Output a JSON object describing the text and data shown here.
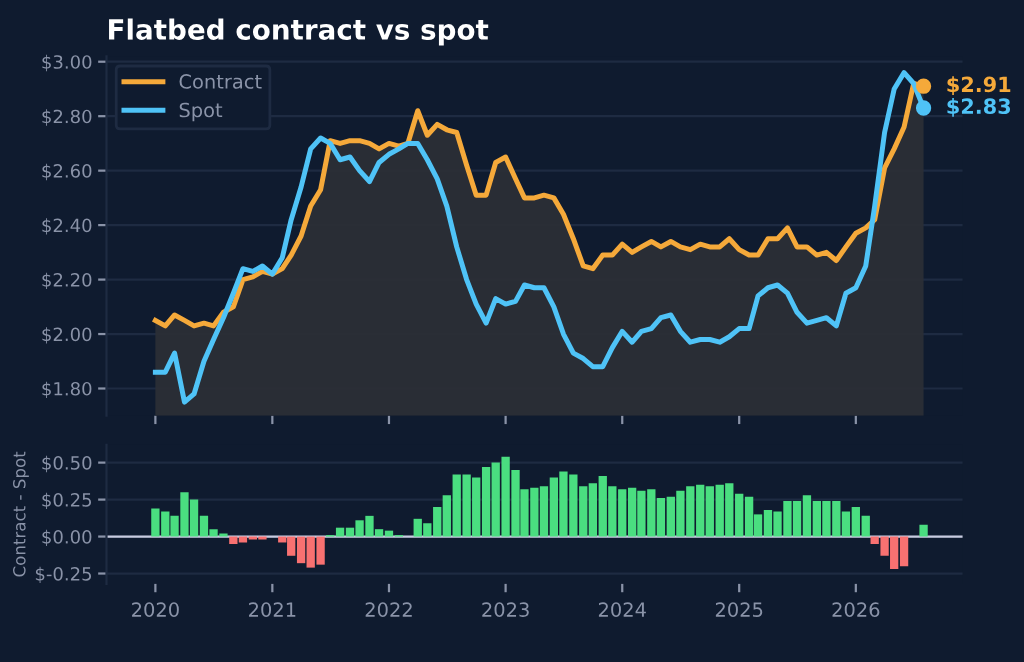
{
  "chart_data": [
    {
      "type": "line",
      "title": "Flatbed contract vs spot",
      "x": [
        "2020-01",
        "2020-02",
        "2020-03",
        "2020-04",
        "2020-05",
        "2020-06",
        "2020-07",
        "2020-08",
        "2020-09",
        "2020-10",
        "2020-11",
        "2020-12",
        "2021-01",
        "2021-02",
        "2021-03",
        "2021-04",
        "2021-05",
        "2021-06",
        "2021-07",
        "2021-08",
        "2021-09",
        "2021-10",
        "2021-11",
        "2021-12",
        "2022-01",
        "2022-02",
        "2022-03",
        "2022-04",
        "2022-05",
        "2022-06",
        "2022-07",
        "2022-08",
        "2022-09",
        "2022-10",
        "2022-11",
        "2022-12",
        "2023-01",
        "2023-02",
        "2023-03",
        "2023-04",
        "2023-05",
        "2023-06",
        "2023-07",
        "2023-08",
        "2023-09",
        "2023-10",
        "2023-11",
        "2023-12",
        "2024-01",
        "2024-02",
        "2024-03",
        "2024-04",
        "2024-05",
        "2024-06",
        "2024-07",
        "2024-08",
        "2024-09",
        "2024-10",
        "2024-11",
        "2024-12",
        "2025-01",
        "2025-02",
        "2025-03",
        "2025-04",
        "2025-05",
        "2025-06",
        "2025-07",
        "2025-08",
        "2025-09",
        "2025-10",
        "2025-11",
        "2025-12",
        "2026-01",
        "2026-02",
        "2026-03",
        "2026-04",
        "2026-05",
        "2026-06",
        "2026-07",
        "2026-08"
      ],
      "series": [
        {
          "name": "Contract",
          "type": "area",
          "color": "#f5a93a",
          "values": [
            2.05,
            2.03,
            2.07,
            2.05,
            2.03,
            2.04,
            2.03,
            2.08,
            2.1,
            2.2,
            2.21,
            2.23,
            2.22,
            2.24,
            2.29,
            2.36,
            2.47,
            2.53,
            2.71,
            2.7,
            2.71,
            2.71,
            2.7,
            2.68,
            2.7,
            2.69,
            2.7,
            2.82,
            2.73,
            2.77,
            2.75,
            2.74,
            2.62,
            2.51,
            2.51,
            2.63,
            2.65,
            2.57,
            2.5,
            2.5,
            2.51,
            2.5,
            2.44,
            2.35,
            2.25,
            2.24,
            2.29,
            2.29,
            2.33,
            2.3,
            2.32,
            2.34,
            2.32,
            2.34,
            2.32,
            2.31,
            2.33,
            2.32,
            2.32,
            2.35,
            2.31,
            2.29,
            2.29,
            2.35,
            2.35,
            2.39,
            2.32,
            2.32,
            2.29,
            2.3,
            2.27,
            2.32,
            2.37,
            2.39,
            2.42,
            2.61,
            2.68,
            2.76,
            2.92,
            2.91
          ]
        },
        {
          "name": "Spot",
          "color": "#4fc3f7",
          "values": [
            1.86,
            1.86,
            1.93,
            1.75,
            1.78,
            1.9,
            1.98,
            2.06,
            2.15,
            2.24,
            2.23,
            2.25,
            2.22,
            2.28,
            2.42,
            2.54,
            2.68,
            2.72,
            2.7,
            2.64,
            2.65,
            2.6,
            2.56,
            2.63,
            2.66,
            2.68,
            2.7,
            2.7,
            2.64,
            2.57,
            2.47,
            2.32,
            2.2,
            2.11,
            2.04,
            2.13,
            2.11,
            2.12,
            2.18,
            2.17,
            2.17,
            2.1,
            2.0,
            1.93,
            1.91,
            1.88,
            1.88,
            1.95,
            2.01,
            1.97,
            2.01,
            2.02,
            2.06,
            2.07,
            2.01,
            1.97,
            1.98,
            1.98,
            1.97,
            1.99,
            2.02,
            2.02,
            2.14,
            2.17,
            2.18,
            2.15,
            2.08,
            2.04,
            2.05,
            2.06,
            2.03,
            2.15,
            2.17,
            2.25,
            2.47,
            2.74,
            2.9,
            2.96,
            2.92,
            2.83
          ]
        }
      ],
      "annotations": [
        {
          "text": "$2.91",
          "x": "2026-08",
          "y": 2.91
        },
        {
          "text": "$2.83",
          "x": "2026-08",
          "y": 2.83
        }
      ],
      "xlim": [
        "2019-08",
        "2026-12"
      ],
      "xticks": [
        "2020",
        "2021",
        "2022",
        "2023",
        "2024",
        "2025",
        "2026"
      ],
      "ylim": [
        1.7,
        3.02
      ],
      "yticks": [
        {
          "value": 1.8,
          "label": "$1.80"
        },
        {
          "value": 2.0,
          "label": "$2.00"
        },
        {
          "value": 2.2,
          "label": "$2.20"
        },
        {
          "value": 2.4,
          "label": "$2.40"
        },
        {
          "value": 2.6,
          "label": "$2.60"
        },
        {
          "value": 2.8,
          "label": "$2.80"
        },
        {
          "value": 3.0,
          "label": "$3.00"
        }
      ],
      "tick_labels": "y",
      "grid": "y",
      "legend": "top left",
      "line_style": "solid"
    },
    {
      "type": "bar",
      "ylabel": "Contract - Spot",
      "x": [
        "2020-01",
        "2020-02",
        "2020-03",
        "2020-04",
        "2020-05",
        "2020-06",
        "2020-07",
        "2020-08",
        "2020-09",
        "2020-10",
        "2020-11",
        "2020-12",
        "2021-01",
        "2021-02",
        "2021-03",
        "2021-04",
        "2021-05",
        "2021-06",
        "2021-07",
        "2021-08",
        "2021-09",
        "2021-10",
        "2021-11",
        "2021-12",
        "2022-01",
        "2022-02",
        "2022-03",
        "2022-04",
        "2022-05",
        "2022-06",
        "2022-07",
        "2022-08",
        "2022-09",
        "2022-10",
        "2022-11",
        "2022-12",
        "2023-01",
        "2023-02",
        "2023-03",
        "2023-04",
        "2023-05",
        "2023-06",
        "2023-07",
        "2023-08",
        "2023-09",
        "2023-10",
        "2023-11",
        "2023-12",
        "2024-01",
        "2024-02",
        "2024-03",
        "2024-04",
        "2024-05",
        "2024-06",
        "2024-07",
        "2024-08",
        "2024-09",
        "2024-10",
        "2024-11",
        "2024-12",
        "2025-01",
        "2025-02",
        "2025-03",
        "2025-04",
        "2025-05",
        "2025-06",
        "2025-07",
        "2025-08",
        "2025-09",
        "2025-10",
        "2025-11",
        "2025-12",
        "2026-01",
        "2026-02",
        "2026-03",
        "2026-04",
        "2026-05",
        "2026-06",
        "2026-07",
        "2026-08"
      ],
      "values": [
        0.19,
        0.17,
        0.14,
        0.3,
        0.25,
        0.14,
        0.05,
        0.02,
        -0.05,
        -0.04,
        -0.02,
        -0.02,
        0.0,
        -0.04,
        -0.13,
        -0.18,
        -0.21,
        -0.19,
        0.01,
        0.06,
        0.06,
        0.11,
        0.14,
        0.05,
        0.04,
        0.01,
        0.0,
        0.12,
        0.09,
        0.2,
        0.28,
        0.42,
        0.42,
        0.4,
        0.47,
        0.5,
        0.54,
        0.45,
        0.32,
        0.33,
        0.34,
        0.4,
        0.44,
        0.42,
        0.34,
        0.36,
        0.41,
        0.34,
        0.32,
        0.33,
        0.31,
        0.32,
        0.26,
        0.27,
        0.31,
        0.34,
        0.35,
        0.34,
        0.35,
        0.36,
        0.29,
        0.27,
        0.15,
        0.18,
        0.17,
        0.24,
        0.24,
        0.28,
        0.24,
        0.24,
        0.24,
        0.17,
        0.2,
        0.14,
        -0.05,
        -0.13,
        -0.22,
        -0.2,
        0.0,
        0.08
      ],
      "colors": [
        "#4ade80",
        "#4ade80",
        "#4ade80",
        "#4ade80",
        "#4ade80",
        "#4ade80",
        "#4ade80",
        "#4ade80",
        "#f87171",
        "#f87171",
        "#f87171",
        "#f87171",
        "#4ade80",
        "#f87171",
        "#f87171",
        "#f87171",
        "#f87171",
        "#f87171",
        "#4ade80",
        "#4ade80",
        "#4ade80",
        "#4ade80",
        "#4ade80",
        "#4ade80",
        "#4ade80",
        "#4ade80",
        "#4ade80",
        "#4ade80",
        "#4ade80",
        "#4ade80",
        "#4ade80",
        "#4ade80",
        "#4ade80",
        "#4ade80",
        "#4ade80",
        "#4ade80",
        "#4ade80",
        "#4ade80",
        "#4ade80",
        "#4ade80",
        "#4ade80",
        "#4ade80",
        "#4ade80",
        "#4ade80",
        "#4ade80",
        "#4ade80",
        "#4ade80",
        "#4ade80",
        "#4ade80",
        "#4ade80",
        "#4ade80",
        "#4ade80",
        "#4ade80",
        "#4ade80",
        "#4ade80",
        "#4ade80",
        "#4ade80",
        "#4ade80",
        "#4ade80",
        "#4ade80",
        "#4ade80",
        "#4ade80",
        "#4ade80",
        "#4ade80",
        "#4ade80",
        "#4ade80",
        "#4ade80",
        "#4ade80",
        "#4ade80",
        "#4ade80",
        "#4ade80",
        "#4ade80",
        "#4ade80",
        "#4ade80",
        "#f87171",
        "#f87171",
        "#f87171",
        "#f87171",
        "#4ade80",
        "#4ade80"
      ],
      "xlim": [
        "2019-08",
        "2026-12"
      ],
      "xticks": [
        "2020",
        "2021",
        "2022",
        "2023",
        "2024",
        "2025",
        "2026"
      ],
      "ylim": [
        -0.32,
        0.62
      ],
      "yticks": [
        {
          "value": -0.25,
          "label": "$-0.25"
        },
        {
          "value": 0.0,
          "label": "$0.00"
        },
        {
          "value": 0.25,
          "label": "$0.25"
        },
        {
          "value": 0.5,
          "label": "$0.50"
        }
      ],
      "ref_lines": [
        {
          "axis": "y",
          "value": 0,
          "color": "#c8cce0"
        }
      ],
      "grid": "y"
    }
  ]
}
